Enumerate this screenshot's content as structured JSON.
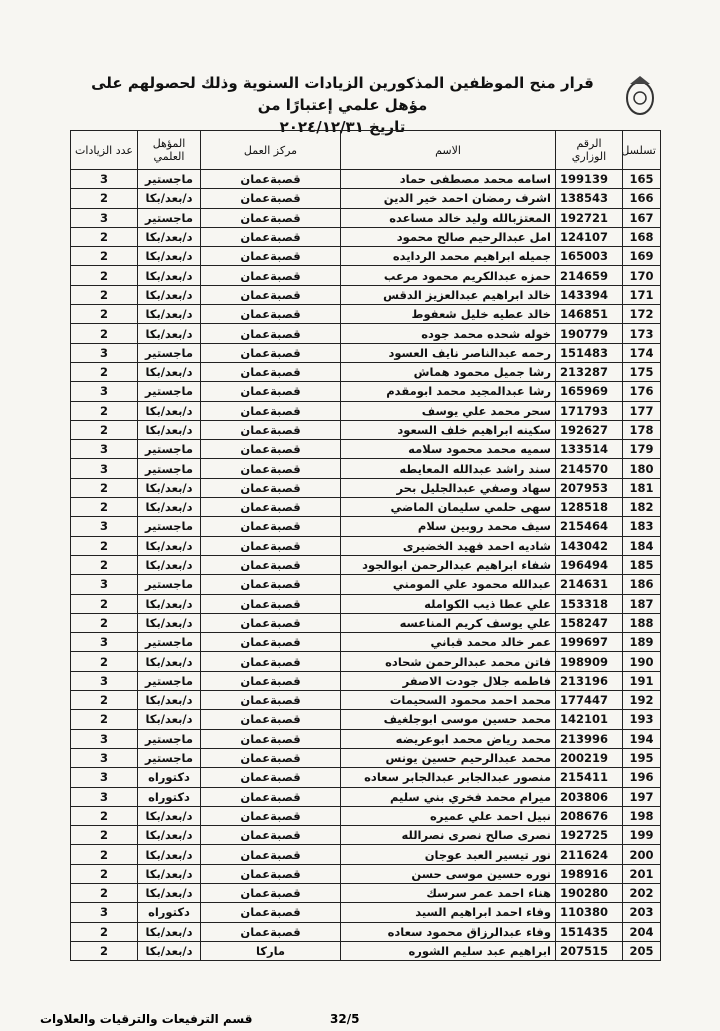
{
  "header": {
    "title_lines": [
      "قرار منح الموظفين المذكورين الزيادات السنوية وذلك لحصولهم على مؤهل علمي إعتبارًا من",
      "تاريخ ٢٠٢٤/١٢/٣١"
    ]
  },
  "table": {
    "columns": [
      "تسلسل",
      "الرقم الوزاري",
      "الاسم",
      "مركز العمل",
      "المؤهل العلمي",
      "عدد الزيادات"
    ],
    "rows": [
      [
        165,
        199139,
        "اسامه محمد مصطفى حماد",
        "قصبةعمان",
        "ماجستير",
        3
      ],
      [
        166,
        138543,
        "اشرف رمضان احمد خير الدين",
        "قصبةعمان",
        "د/بعد/بكا",
        2
      ],
      [
        167,
        192721,
        "المعتزبالله وليد خالد مساعده",
        "قصبةعمان",
        "ماجستير",
        3
      ],
      [
        168,
        124107,
        "امل عبدالرحيم صالح محمود",
        "قصبةعمان",
        "د/بعد/بكا",
        2
      ],
      [
        169,
        165003,
        "جميله ابراهيم محمد الردايده",
        "قصبةعمان",
        "د/بعد/بكا",
        2
      ],
      [
        170,
        214659,
        "حمزه عبدالكريم محمود مرعب",
        "قصبةعمان",
        "د/بعد/بكا",
        2
      ],
      [
        171,
        143394,
        "خالد ابراهيم عبدالعزيز الدقس",
        "قصبةعمان",
        "د/بعد/بكا",
        2
      ],
      [
        172,
        146851,
        "خالد عطيه خليل شعفوط",
        "قصبةعمان",
        "د/بعد/بكا",
        2
      ],
      [
        173,
        190779,
        "خوله شحده محمد جوده",
        "قصبةعمان",
        "د/بعد/بكا",
        2
      ],
      [
        174,
        151483,
        "رحمه عبدالناصر نايف العسود",
        "قصبةعمان",
        "ماجستير",
        3
      ],
      [
        175,
        213287,
        "رشا جميل محمود هماش",
        "قصبةعمان",
        "د/بعد/بكا",
        2
      ],
      [
        176,
        165969,
        "رشا عبدالمجيد محمد ابومقدم",
        "قصبةعمان",
        "ماجستير",
        3
      ],
      [
        177,
        171793,
        "سحر محمد علي يوسف",
        "قصبةعمان",
        "د/بعد/بكا",
        2
      ],
      [
        178,
        192627,
        "سكينه ابراهيم خلف السعود",
        "قصبةعمان",
        "د/بعد/بكا",
        2
      ],
      [
        179,
        133514,
        "سميه محمد محمود سلامه",
        "قصبةعمان",
        "ماجستير",
        3
      ],
      [
        180,
        214570,
        "سند راشد عبدالله المعايطه",
        "قصبةعمان",
        "ماجستير",
        3
      ],
      [
        181,
        207953,
        "سهاد وصفي عبدالجليل بحر",
        "قصبةعمان",
        "د/بعد/بكا",
        2
      ],
      [
        182,
        128518,
        "سهى حلمي سليمان الماضي",
        "قصبةعمان",
        "د/بعد/بكا",
        2
      ],
      [
        183,
        215464,
        "سيف محمد روبين سلام",
        "قصبةعمان",
        "ماجستير",
        3
      ],
      [
        184,
        143042,
        "شاديه احمد فهيد الخضيرى",
        "قصبةعمان",
        "د/بعد/بكا",
        2
      ],
      [
        185,
        196494,
        "شفاء ابراهيم عبدالرحمن ابوالجود",
        "قصبةعمان",
        "د/بعد/بكا",
        2
      ],
      [
        186,
        214631,
        "عبدالله محمود علي المومني",
        "قصبةعمان",
        "ماجستير",
        3
      ],
      [
        187,
        153318,
        "علي عطا ذيب الكوامله",
        "قصبةعمان",
        "د/بعد/بكا",
        2
      ],
      [
        188,
        158247,
        "علي يوسف كريم المناعسه",
        "قصبةعمان",
        "د/بعد/بكا",
        2
      ],
      [
        189,
        199697,
        "عمر خالد محمد قباني",
        "قصبةعمان",
        "ماجستير",
        3
      ],
      [
        190,
        198909,
        "فاتن محمد عبدالرحمن شحاده",
        "قصبةعمان",
        "د/بعد/بكا",
        2
      ],
      [
        191,
        213196,
        "فاطمه جلال جودت الاصفر",
        "قصبةعمان",
        "ماجستير",
        3
      ],
      [
        192,
        177447,
        "محمد احمد محمود السحيمات",
        "قصبةعمان",
        "د/بعد/بكا",
        2
      ],
      [
        193,
        142101,
        "محمد حسين موسى ابوجلغيف",
        "قصبةعمان",
        "د/بعد/بكا",
        2
      ],
      [
        194,
        213996,
        "محمد رياض محمد ابوعريضه",
        "قصبةعمان",
        "ماجستير",
        3
      ],
      [
        195,
        200219,
        "محمد عبدالرحيم حسين يونس",
        "قصبةعمان",
        "ماجستير",
        3
      ],
      [
        196,
        215411,
        "منصور عبدالجابر عبدالجابر سعاده",
        "قصبةعمان",
        "دكتوراه",
        3
      ],
      [
        197,
        203806,
        "ميرام محمد فخري بني سليم",
        "قصبةعمان",
        "دكتوراه",
        3
      ],
      [
        198,
        208676,
        "نبيل احمد علي عميره",
        "قصبةعمان",
        "د/بعد/بكا",
        2
      ],
      [
        199,
        192725,
        "نصرى صالح نصرى نصرالله",
        "قصبةعمان",
        "د/بعد/بكا",
        2
      ],
      [
        200,
        211624,
        "نور تيسير العبد عوجان",
        "قصبةعمان",
        "د/بعد/بكا",
        2
      ],
      [
        201,
        198916,
        "نوره حسين موسى حسن",
        "قصبةعمان",
        "د/بعد/بكا",
        2
      ],
      [
        202,
        190280,
        "هناء احمد عمر سرسك",
        "قصبةعمان",
        "د/بعد/بكا",
        2
      ],
      [
        203,
        110380,
        "وفاء احمد ابراهيم السيد",
        "قصبةعمان",
        "دكتوراه",
        3
      ],
      [
        204,
        151435,
        "وفاء عبدالرزاق محمود سعاده",
        "قصبةعمان",
        "د/بعد/بكا",
        2
      ],
      [
        205,
        207515,
        "ابراهيم عبد سليم الشوره",
        "ماركا",
        "د/بعد/بكا",
        2
      ]
    ]
  },
  "footer": {
    "department": "قسم الترفيعات والترقيات والعلاوات",
    "page": "32/5"
  }
}
